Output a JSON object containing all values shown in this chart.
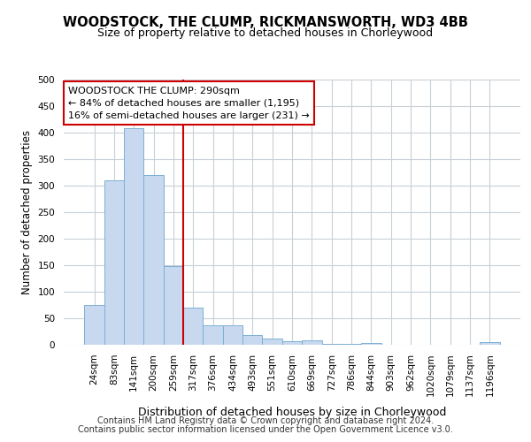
{
  "title1": "WOODSTOCK, THE CLUMP, RICKMANSWORTH, WD3 4BB",
  "title2": "Size of property relative to detached houses in Chorleywood",
  "xlabel": "Distribution of detached houses by size in Chorleywood",
  "ylabel": "Number of detached properties",
  "footer1": "Contains HM Land Registry data © Crown copyright and database right 2024.",
  "footer2": "Contains public sector information licensed under the Open Government Licence v3.0.",
  "bar_labels": [
    "24sqm",
    "83sqm",
    "141sqm",
    "200sqm",
    "259sqm",
    "317sqm",
    "376sqm",
    "434sqm",
    "493sqm",
    "551sqm",
    "610sqm",
    "669sqm",
    "727sqm",
    "786sqm",
    "844sqm",
    "903sqm",
    "962sqm",
    "1020sqm",
    "1079sqm",
    "1137sqm",
    "1196sqm"
  ],
  "bar_values": [
    75,
    310,
    408,
    320,
    148,
    70,
    37,
    37,
    18,
    12,
    6,
    8,
    1,
    1,
    4,
    0,
    0,
    0,
    0,
    0,
    5
  ],
  "bar_color": "#c8d9ef",
  "bar_edge_color": "#7bafd4",
  "vline_color": "#cc0000",
  "ylim": [
    0,
    500
  ],
  "yticks": [
    0,
    50,
    100,
    150,
    200,
    250,
    300,
    350,
    400,
    450,
    500
  ],
  "annotation_line1": "WOODSTOCK THE CLUMP: 290sqm",
  "annotation_line2": "← 84% of detached houses are smaller (1,195)",
  "annotation_line3": "16% of semi-detached houses are larger (231) →",
  "annotation_box_color": "#ffffff",
  "annotation_box_edge": "#cc0000",
  "background_color": "#ffffff",
  "grid_color": "#c8d0d8",
  "title1_fontsize": 10.5,
  "title2_fontsize": 9,
  "ylabel_fontsize": 8.5,
  "xlabel_fontsize": 9,
  "tick_fontsize": 7.5,
  "footer_fontsize": 7
}
